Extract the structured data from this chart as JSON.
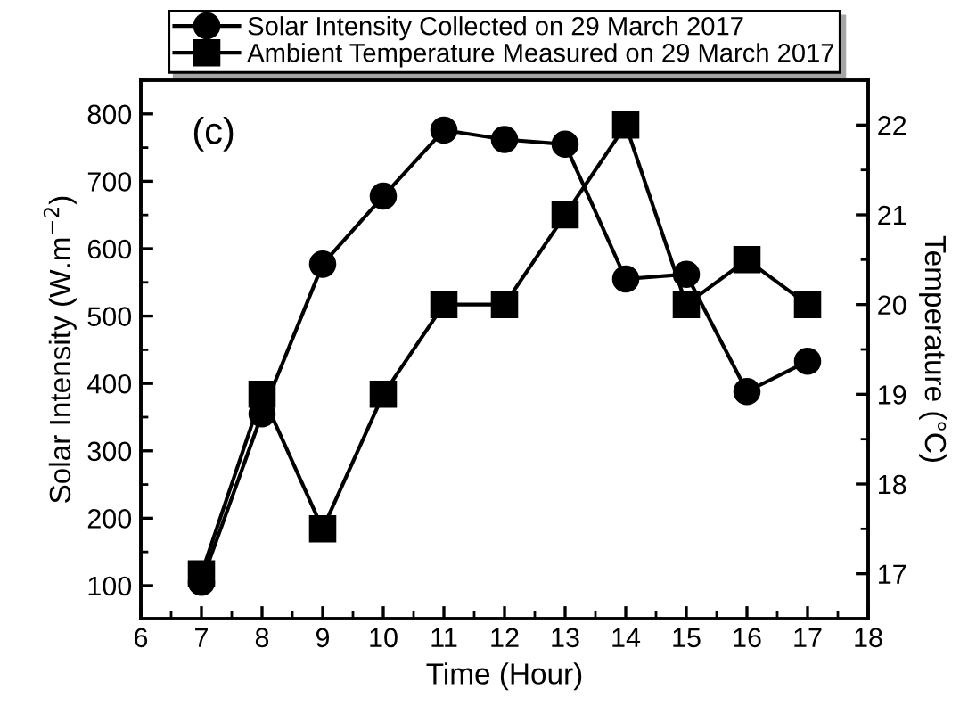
{
  "chart_data": {
    "type": "line",
    "xlabel": "Time (Hour)",
    "ylabel": "Solar Intensity (W.m$^{−2}$)",
    "y2label": "Temperature (°C)",
    "annotations": [
      "(c)"
    ],
    "x": [
      7,
      8,
      9,
      10,
      11,
      12,
      13,
      14,
      15,
      16,
      17
    ],
    "series": [
      {
        "name": "Solar Intensity Collected on 29 March 2017",
        "color": "#000000",
        "marker": "circle",
        "values": [
          105,
          355,
          577,
          678,
          776,
          762,
          755,
          555,
          562,
          388,
          433
        ]
      },
      {
        "name": "Ambient Temperature Measured on 29 March 2017",
        "color": "#000000",
        "marker": "square",
        "axis": "y2",
        "values": [
          17,
          19,
          17.5,
          19,
          20,
          20,
          21,
          22,
          20,
          20.5,
          20
        ]
      }
    ],
    "xlim": [
      6,
      18
    ],
    "xticks": [
      6,
      7,
      8,
      9,
      10,
      11,
      12,
      13,
      14,
      15,
      16,
      17,
      18
    ],
    "ylim": [
      51,
      850
    ],
    "yticks": [
      100,
      200,
      300,
      400,
      500,
      600,
      700,
      800
    ],
    "y2lim": [
      16.5,
      22.5
    ],
    "y2ticks": [
      17,
      18,
      19,
      20,
      21,
      22
    ],
    "grid": false,
    "legend": "top",
    "line_style": "solid"
  }
}
